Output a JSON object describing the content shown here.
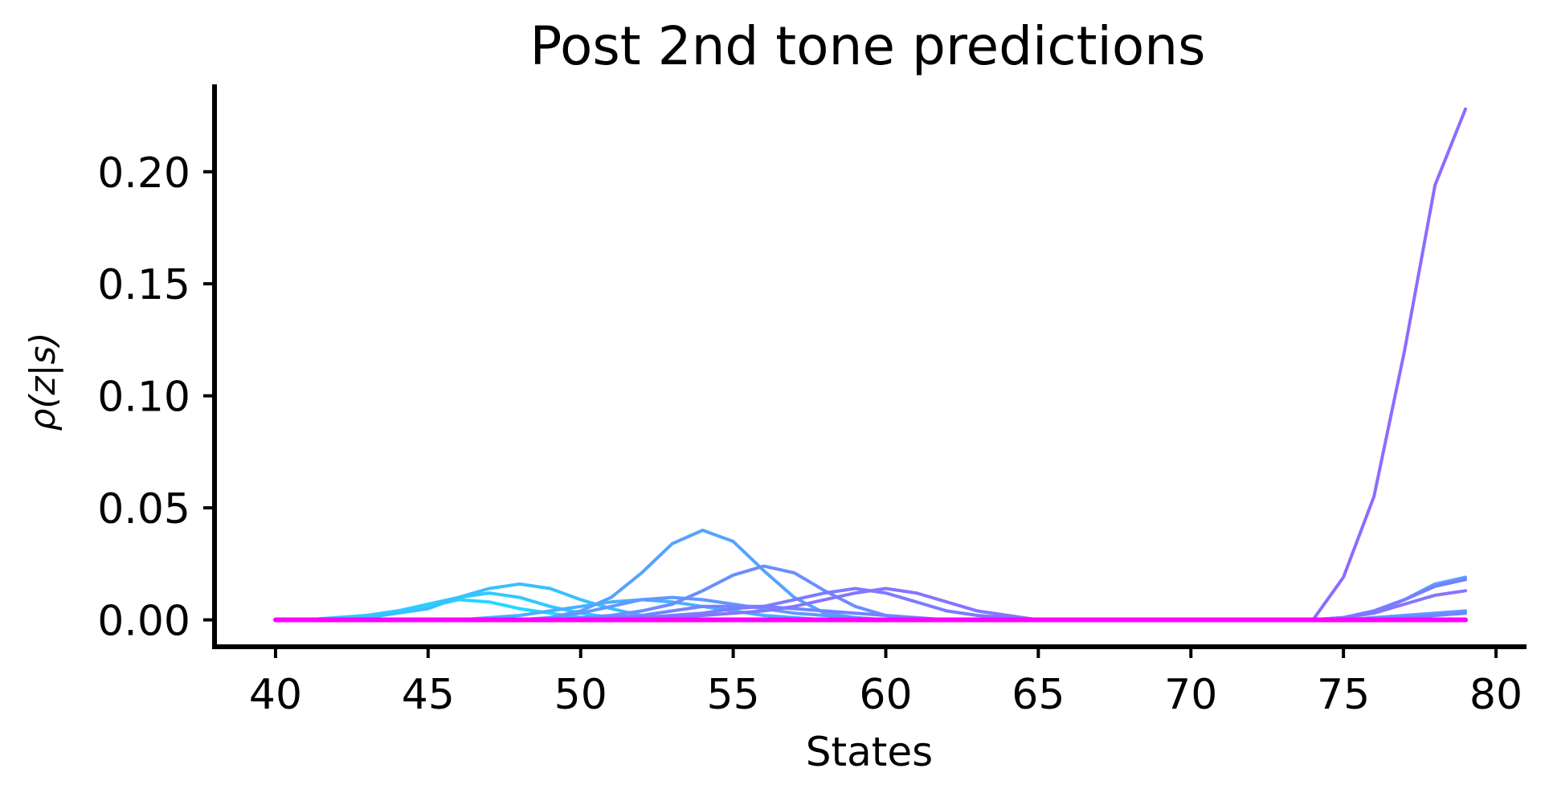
{
  "chart_data": {
    "type": "line",
    "title": "Post 2nd tone predictions",
    "xlabel": "States",
    "ylabel": "ρ(z|s)",
    "xlim": [
      38,
      81
    ],
    "ylim": [
      -0.012,
      0.239
    ],
    "xticks": [
      40,
      45,
      50,
      55,
      60,
      65,
      70,
      75,
      80
    ],
    "xtick_labels": [
      "40",
      "45",
      "50",
      "55",
      "60",
      "65",
      "70",
      "75",
      "80"
    ],
    "yticks": [
      0.0,
      0.05,
      0.1,
      0.15,
      0.2
    ],
    "ytick_labels": [
      "0.00",
      "0.05",
      "0.10",
      "0.15",
      "0.20"
    ],
    "grid": false,
    "x": [
      40,
      41,
      42,
      43,
      44,
      45,
      46,
      47,
      48,
      49,
      50,
      51,
      52,
      53,
      54,
      55,
      56,
      57,
      58,
      59,
      60,
      61,
      62,
      63,
      64,
      65,
      66,
      67,
      68,
      69,
      70,
      71,
      72,
      73,
      74,
      75,
      76,
      77,
      78,
      79
    ],
    "series": [
      {
        "color": "#22d8ff",
        "values": [
          0,
          0,
          0.001,
          0.002,
          0.004,
          0.006,
          0.009,
          0.008,
          0.005,
          0.003,
          0.001,
          0.0005,
          0,
          0,
          0,
          0,
          0,
          0,
          0,
          0,
          0,
          0,
          0,
          0,
          0,
          0,
          0,
          0,
          0,
          0,
          0,
          0,
          0,
          0,
          0,
          0.001,
          0.004,
          0.009,
          0.015,
          0.018
        ]
      },
      {
        "color": "#2fcaff",
        "values": [
          0,
          0,
          0.001,
          0.002,
          0.004,
          0.007,
          0.01,
          0.012,
          0.01,
          0.006,
          0.003,
          0.001,
          0.0005,
          0,
          0,
          0,
          0,
          0,
          0,
          0,
          0,
          0,
          0,
          0,
          0,
          0,
          0,
          0,
          0,
          0,
          0,
          0,
          0,
          0,
          0,
          0,
          0,
          0,
          0,
          0
        ]
      },
      {
        "color": "#3abfff",
        "values": [
          0,
          0,
          0,
          0.001,
          0.003,
          0.005,
          0.01,
          0.014,
          0.016,
          0.014,
          0.009,
          0.005,
          0.002,
          0.001,
          0,
          0,
          0,
          0,
          0,
          0,
          0,
          0,
          0,
          0,
          0,
          0,
          0,
          0,
          0,
          0,
          0,
          0,
          0,
          0,
          0,
          0,
          0,
          0,
          0,
          0
        ]
      },
      {
        "color": "#49b0ff",
        "values": [
          0,
          0,
          0,
          0,
          0,
          0,
          0,
          0.001,
          0.002,
          0.004,
          0.006,
          0.008,
          0.009,
          0.008,
          0.006,
          0.004,
          0.002,
          0.001,
          0,
          0,
          0,
          0,
          0,
          0,
          0,
          0,
          0,
          0,
          0,
          0,
          0,
          0,
          0,
          0,
          0,
          0,
          0,
          0,
          0,
          0
        ]
      },
      {
        "color": "#55a3ff",
        "values": [
          0,
          0,
          0,
          0,
          0,
          0,
          0,
          0,
          0,
          0.001,
          0.004,
          0.01,
          0.021,
          0.034,
          0.04,
          0.035,
          0.022,
          0.01,
          0.003,
          0.001,
          0,
          0,
          0,
          0,
          0,
          0,
          0,
          0,
          0,
          0,
          0,
          0,
          0,
          0,
          0,
          0.001,
          0.003,
          0.009,
          0.016,
          0.019
        ]
      },
      {
        "color": "#6298ff",
        "values": [
          0,
          0,
          0,
          0,
          0,
          0,
          0,
          0,
          0,
          0.001,
          0.003,
          0.006,
          0.009,
          0.01,
          0.009,
          0.007,
          0.005,
          0.003,
          0.002,
          0.001,
          0,
          0,
          0,
          0,
          0,
          0,
          0,
          0,
          0,
          0,
          0,
          0,
          0,
          0,
          0,
          0,
          0.001,
          0.002,
          0.003,
          0.004
        ]
      },
      {
        "color": "#6a8eff",
        "values": [
          0,
          0,
          0,
          0,
          0,
          0,
          0,
          0,
          0,
          0,
          0.001,
          0.002,
          0.004,
          0.007,
          0.013,
          0.02,
          0.024,
          0.021,
          0.013,
          0.006,
          0.002,
          0,
          0,
          0,
          0,
          0,
          0,
          0,
          0,
          0,
          0,
          0,
          0,
          0,
          0,
          0,
          0,
          0,
          0,
          0
        ]
      },
      {
        "color": "#7384ff",
        "values": [
          0,
          0,
          0,
          0,
          0,
          0,
          0,
          0,
          0,
          0,
          0,
          0.001,
          0.002,
          0.004,
          0.006,
          0.006,
          0.006,
          0.005,
          0.004,
          0.003,
          0.002,
          0.001,
          0,
          0,
          0,
          0,
          0,
          0,
          0,
          0,
          0,
          0,
          0,
          0,
          0,
          0,
          0,
          0.001,
          0.002,
          0.003
        ]
      },
      {
        "color": "#7c7bff",
        "values": [
          0,
          0,
          0,
          0,
          0,
          0,
          0,
          0,
          0,
          0,
          0,
          0,
          0.001,
          0.002,
          0.003,
          0.005,
          0.006,
          0.009,
          0.012,
          0.014,
          0.012,
          0.008,
          0.004,
          0.002,
          0.001,
          0,
          0,
          0,
          0,
          0,
          0,
          0,
          0,
          0,
          0,
          0.001,
          0.004,
          0.009,
          0.015,
          0.018
        ]
      },
      {
        "color": "#8575ff",
        "values": [
          0,
          0,
          0,
          0,
          0,
          0,
          0,
          0,
          0,
          0,
          0,
          0,
          0,
          0.001,
          0.002,
          0.003,
          0.004,
          0.006,
          0.009,
          0.012,
          0.014,
          0.012,
          0.008,
          0.004,
          0.002,
          0,
          0,
          0,
          0,
          0,
          0,
          0,
          0,
          0,
          0,
          0.001,
          0.003,
          0.007,
          0.011,
          0.013
        ]
      },
      {
        "color": "#8d6bff",
        "values": [
          0,
          0,
          0,
          0,
          0,
          0,
          0,
          0,
          0,
          0,
          0,
          0,
          0,
          0,
          0,
          0,
          0,
          0,
          0,
          0,
          0,
          0,
          0,
          0,
          0,
          0,
          0,
          0,
          0,
          0,
          0,
          0,
          0,
          0,
          0,
          0.019,
          0.055,
          0.12,
          0.194,
          0.228
        ]
      },
      {
        "color": "#ff00ff",
        "values": [
          0,
          0,
          0,
          0,
          0,
          0,
          0,
          0,
          0,
          0,
          0,
          0,
          0,
          0,
          0,
          0,
          0,
          0,
          0,
          0,
          0,
          0,
          0,
          0,
          0,
          0,
          0,
          0,
          0,
          0,
          0,
          0,
          0,
          0,
          0,
          0,
          0,
          0,
          0,
          0
        ]
      }
    ]
  }
}
